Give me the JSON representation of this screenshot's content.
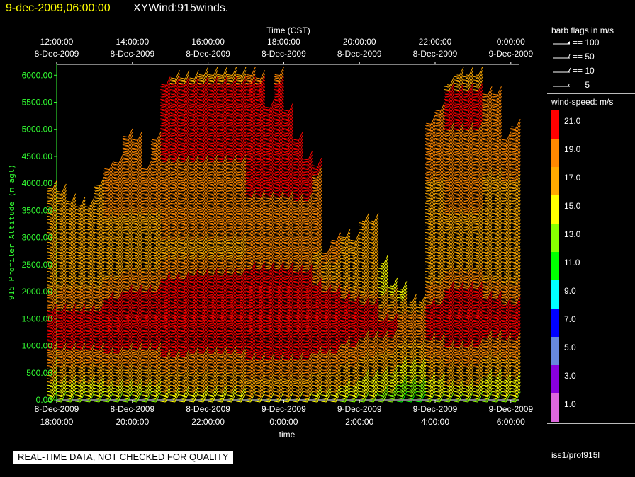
{
  "header": {
    "date_text": "9-dec-2009,06:00:00",
    "title_text": "XYWind:915winds."
  },
  "chart_data": {
    "type": "wind-barb",
    "top_axis": {
      "label": "Time (CST)",
      "ticks": [
        {
          "t": 0,
          "time": "12:00:00",
          "date": "8-Dec-2009"
        },
        {
          "t": 2,
          "time": "14:00:00",
          "date": "8-Dec-2009"
        },
        {
          "t": 4,
          "time": "16:00:00",
          "date": "8-Dec-2009"
        },
        {
          "t": 6,
          "time": "18:00:00",
          "date": "8-Dec-2009"
        },
        {
          "t": 8,
          "time": "20:00:00",
          "date": "8-Dec-2009"
        },
        {
          "t": 10,
          "time": "22:00:00",
          "date": "8-Dec-2009"
        },
        {
          "t": 12,
          "time": "0:00:00",
          "date": "9-Dec-2009"
        }
      ]
    },
    "bottom_axis": {
      "label": "time",
      "ticks": [
        {
          "t": 0,
          "date": "8-Dec-2009",
          "time": "18:00:00"
        },
        {
          "t": 2,
          "date": "8-Dec-2009",
          "time": "20:00:00"
        },
        {
          "t": 4,
          "date": "8-Dec-2009",
          "time": "22:00:00"
        },
        {
          "t": 6,
          "date": "9-Dec-2009",
          "time": "0:00:00"
        },
        {
          "t": 8,
          "date": "9-Dec-2009",
          "time": "2:00:00"
        },
        {
          "t": 10,
          "date": "9-Dec-2009",
          "time": "4:00:00"
        },
        {
          "t": 12,
          "date": "9-Dec-2009",
          "time": "6:00:00"
        }
      ]
    },
    "x_range_hours": [
      0,
      12.75
    ],
    "y_axis": {
      "label": "915 Profiler Altitude (m agl)",
      "range": [
        0,
        6200
      ],
      "ticks": [
        "0.00",
        "500.00",
        "1000.00",
        "1500.00",
        "2000.00",
        "2500.00",
        "3000.00",
        "3500.00",
        "4000.00",
        "4500.00",
        "5000.00",
        "5500.00",
        "6000.00"
      ],
      "tick_values": [
        0,
        500,
        1000,
        1500,
        2000,
        2500,
        3000,
        3500,
        4000,
        4500,
        5000,
        5500,
        6000
      ]
    },
    "profiles": [
      {
        "t": 0.0,
        "top": 4100,
        "peak": [
          1400,
          2600
        ],
        "mult": 1.0
      },
      {
        "t": 0.25,
        "top": 4000,
        "peak": [
          1400,
          2600
        ],
        "mult": 1.0
      },
      {
        "t": 0.5,
        "top": 3850,
        "peak": [
          1400,
          2600
        ],
        "mult": 1.0
      },
      {
        "t": 0.75,
        "top": 3800,
        "peak": [
          1400,
          2600
        ],
        "mult": 1.0
      },
      {
        "t": 1.0,
        "top": 3800,
        "peak": [
          1400,
          2600
        ],
        "mult": 1.0
      },
      {
        "t": 1.25,
        "top": 4150,
        "peak": [
          1400,
          2600
        ],
        "mult": 1.0
      },
      {
        "t": 1.5,
        "top": 4450,
        "peak": [
          1500,
          2600
        ],
        "mult": 1.05
      },
      {
        "t": 1.75,
        "top": 4550,
        "peak": [
          1500,
          2600
        ],
        "mult": 1.05
      },
      {
        "t": 2.0,
        "top": 5050,
        "peak": [
          1600,
          2700
        ],
        "mult": 1.05
      },
      {
        "t": 2.25,
        "top": 5000,
        "peak": [
          1600,
          2700
        ],
        "mult": 1.05
      },
      {
        "t": 2.5,
        "top": 4450,
        "peak": [
          1600,
          2700
        ],
        "mult": 1.05
      },
      {
        "t": 2.75,
        "top": 4950,
        "peak": [
          1600,
          2700
        ],
        "mult": 1.05
      },
      {
        "t": 3.0,
        "top": 6000,
        "peak": [
          1700,
          2800
        ],
        "mult": 1.1
      },
      {
        "t": 3.25,
        "top": 6100,
        "peak": [
          1700,
          2800
        ],
        "mult": 1.1
      },
      {
        "t": 3.5,
        "top": 6100,
        "peak": [
          1700,
          2800
        ],
        "mult": 1.1
      },
      {
        "t": 3.75,
        "top": 6100,
        "peak": [
          1800,
          2800
        ],
        "mult": 1.1
      },
      {
        "t": 4.0,
        "top": 6200,
        "peak": [
          1800,
          2800
        ],
        "mult": 1.1
      },
      {
        "t": 4.25,
        "top": 6200,
        "peak": [
          1800,
          2800
        ],
        "mult": 1.1
      },
      {
        "t": 4.5,
        "top": 6200,
        "peak": [
          1800,
          2800
        ],
        "mult": 1.1
      },
      {
        "t": 4.75,
        "top": 6200,
        "peak": [
          1800,
          2800
        ],
        "mult": 1.1
      },
      {
        "t": 5.0,
        "top": 6200,
        "peak": [
          1800,
          2800
        ],
        "mult": 1.1
      },
      {
        "t": 5.25,
        "top": 6200,
        "peak": [
          1800,
          2800
        ],
        "mult": 1.15
      },
      {
        "t": 5.5,
        "top": 6100,
        "peak": [
          1800,
          2800
        ],
        "mult": 1.15
      },
      {
        "t": 5.75,
        "top": 5600,
        "peak": [
          1800,
          2800
        ],
        "mult": 1.15
      },
      {
        "t": 6.0,
        "top": 6200,
        "peak": [
          1800,
          2800
        ],
        "mult": 1.15
      },
      {
        "t": 6.25,
        "top": 5500,
        "peak": [
          1800,
          2800
        ],
        "mult": 1.15
      },
      {
        "t": 6.5,
        "top": 5000,
        "peak": [
          1800,
          2700
        ],
        "mult": 1.15
      },
      {
        "t": 6.75,
        "top": 4600,
        "peak": [
          1800,
          2700
        ],
        "mult": 1.15
      },
      {
        "t": 7.0,
        "top": 4500,
        "peak": [
          1800,
          2600
        ],
        "mult": 1.1
      },
      {
        "t": 7.25,
        "top": 2900,
        "peak": [
          1800,
          2400
        ],
        "mult": 1.1
      },
      {
        "t": 7.5,
        "top": 3100,
        "peak": [
          1800,
          2400
        ],
        "mult": 1.1
      },
      {
        "t": 7.75,
        "top": 3200,
        "peak": [
          1800,
          2300
        ],
        "mult": 1.05
      },
      {
        "t": 8.0,
        "top": 3100,
        "peak": [
          1700,
          2300
        ],
        "mult": 1.05
      },
      {
        "t": 8.25,
        "top": 3500,
        "peak": [
          1700,
          2300
        ],
        "mult": 1.0
      },
      {
        "t": 8.5,
        "top": 3500,
        "peak": [
          1700,
          2300
        ],
        "mult": 1.0
      },
      {
        "t": 8.75,
        "top": 2700,
        "peak": [
          1500,
          2200
        ],
        "mult": 0.95
      },
      {
        "t": 9.0,
        "top": 2300,
        "peak": [
          1500,
          2200
        ],
        "mult": 0.95
      },
      {
        "t": 9.25,
        "top": 2200,
        "peak": [
          1500,
          2200
        ],
        "mult": 0.9
      },
      {
        "t": 9.5,
        "top": 2000,
        "peak": [
          1500,
          2200
        ],
        "mult": 0.9
      },
      {
        "t": 9.75,
        "top": 2000,
        "peak": [
          1500,
          2200
        ],
        "mult": 0.9
      },
      {
        "t": 10.0,
        "top": 5300,
        "peak": [
          1600,
          2600
        ],
        "mult": 1.0
      },
      {
        "t": 10.25,
        "top": 5500,
        "peak": [
          1600,
          2600
        ],
        "mult": 1.0
      },
      {
        "t": 10.5,
        "top": 6000,
        "peak": [
          1700,
          2700
        ],
        "mult": 1.05
      },
      {
        "t": 10.75,
        "top": 6200,
        "peak": [
          1700,
          2700
        ],
        "mult": 1.05
      },
      {
        "t": 11.0,
        "top": 6200,
        "peak": [
          1700,
          2700
        ],
        "mult": 1.05
      },
      {
        "t": 11.25,
        "top": 6200,
        "peak": [
          1700,
          2700
        ],
        "mult": 1.05
      },
      {
        "t": 11.5,
        "top": 5800,
        "peak": [
          1700,
          2700
        ],
        "mult": 1.0
      },
      {
        "t": 11.75,
        "top": 5800,
        "peak": [
          1700,
          2700
        ],
        "mult": 1.0
      },
      {
        "t": 12.0,
        "top": 5000,
        "peak": [
          1600,
          2600
        ],
        "mult": 1.0
      },
      {
        "t": 12.25,
        "top": 5200,
        "peak": [
          1600,
          2600
        ],
        "mult": 1.0
      }
    ],
    "level_step_m": 60,
    "barb_direction_deg": 205
  },
  "legend": {
    "flags_title": "barb flags in m/s",
    "flags": [
      {
        "label": "== 100",
        "kind": "flag"
      },
      {
        "label": "== 50",
        "kind": "pennant"
      },
      {
        "label": "== 10",
        "kind": "full"
      },
      {
        "label": "== 5",
        "kind": "half"
      }
    ],
    "speed_title": "wind-speed: m/s",
    "colorbar": [
      {
        "label": "21.0",
        "color": "#ff0000"
      },
      {
        "label": "19.0",
        "color": "#ff8800"
      },
      {
        "label": "17.0",
        "color": "#ffaa00"
      },
      {
        "label": "15.0",
        "color": "#ffff00"
      },
      {
        "label": "13.0",
        "color": "#88ff00"
      },
      {
        "label": "11.0",
        "color": "#00ff00"
      },
      {
        "label": "9.0",
        "color": "#00ffff"
      },
      {
        "label": "7.0",
        "color": "#0000ff"
      },
      {
        "label": "5.0",
        "color": "#6688dd"
      },
      {
        "label": "3.0",
        "color": "#8800dd"
      },
      {
        "label": "1.0",
        "color": "#dd66dd"
      }
    ]
  },
  "source_label": "iss1/prof915l",
  "disclaimer": "REAL-TIME DATA, NOT CHECKED FOR QUALITY"
}
